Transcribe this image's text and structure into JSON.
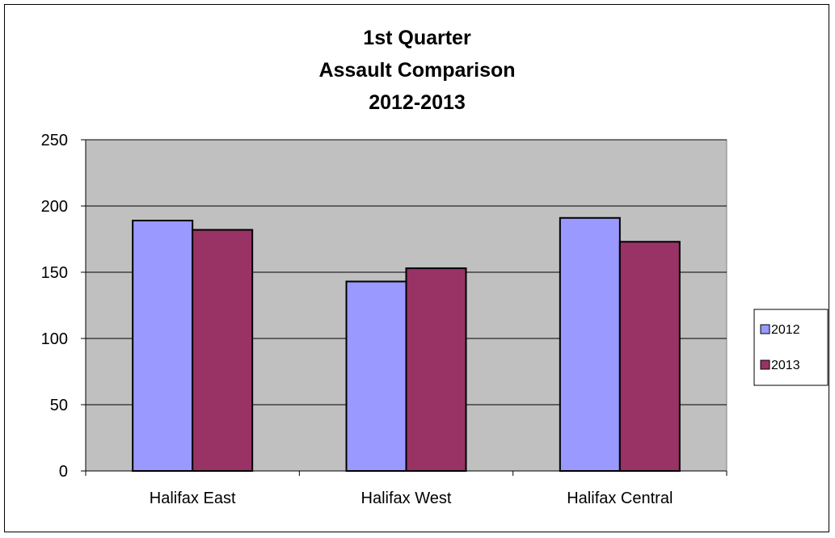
{
  "chart_data": {
    "type": "bar",
    "title": [
      "1st Quarter",
      "Assault Comparison",
      "2012-2013"
    ],
    "categories": [
      "Halifax East",
      "Halifax West",
      "Halifax Central"
    ],
    "series": [
      {
        "name": "2012",
        "values": [
          189,
          143,
          191
        ],
        "color": "#9999ff"
      },
      {
        "name": "2013",
        "values": [
          182,
          153,
          173
        ],
        "color": "#993366"
      }
    ],
    "ylim": [
      0,
      250
    ],
    "yticks": [
      "0",
      "50",
      "100",
      "150",
      "200",
      "250"
    ],
    "ytick_values": [
      0,
      50,
      100,
      150,
      200,
      250
    ],
    "grid": true,
    "plot_background": "#c0c0c0",
    "legend_position": "right"
  }
}
